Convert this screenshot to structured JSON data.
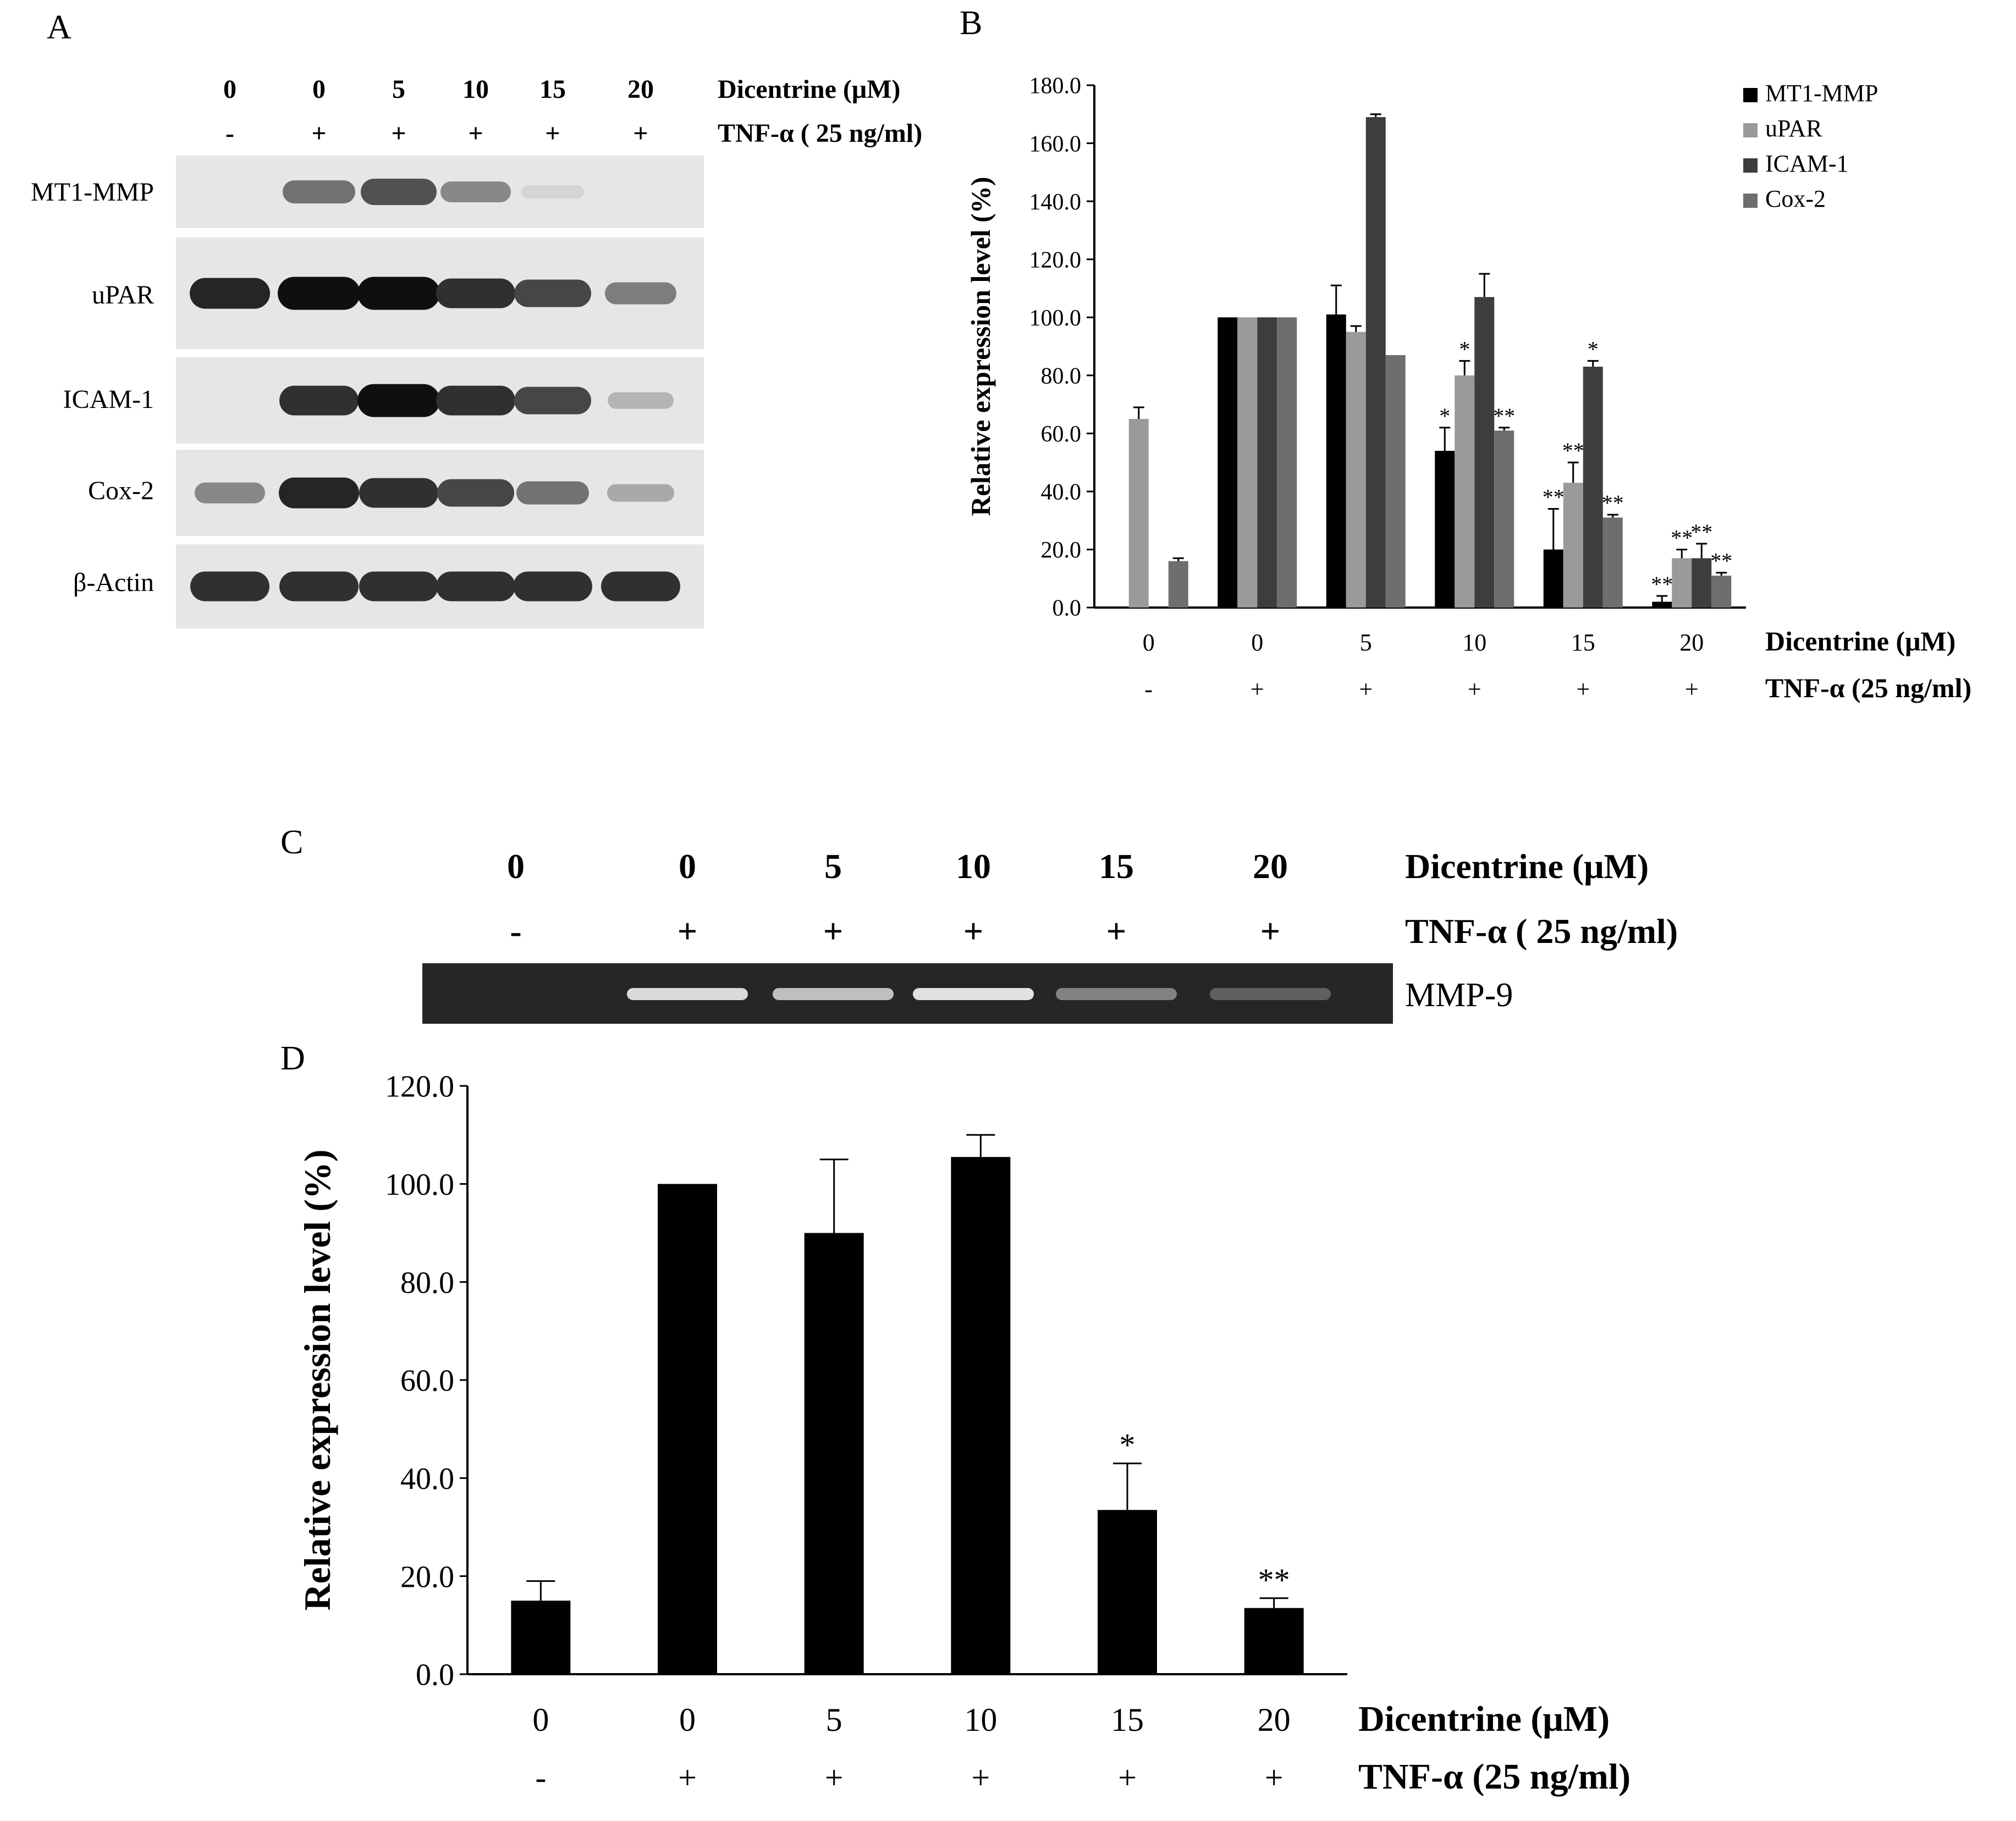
{
  "figure": {
    "panels": [
      "A",
      "B",
      "C",
      "D"
    ]
  },
  "blot_a": {
    "dicentrine_label": "Dicentrine (μM)",
    "tnf_label": "TNF-α ( 25 ng/ml)",
    "doses": [
      "0",
      "0",
      "5",
      "10",
      "15",
      "20"
    ],
    "tnf": [
      "-",
      "+",
      "+",
      "+",
      "+",
      "+"
    ],
    "rows": [
      {
        "label": "MT1-MMP",
        "intensity": [
          0.0,
          0.55,
          0.7,
          0.45,
          0.1,
          0.0
        ]
      },
      {
        "label": "uPAR",
        "intensity": [
          0.9,
          1.0,
          1.0,
          0.85,
          0.75,
          0.5
        ]
      },
      {
        "label": "ICAM-1",
        "intensity": [
          0.0,
          0.85,
          1.0,
          0.85,
          0.75,
          0.25
        ]
      },
      {
        "label": "Cox-2",
        "intensity": [
          0.45,
          0.9,
          0.85,
          0.75,
          0.55,
          0.3
        ]
      },
      {
        "label": "β-Actin",
        "intensity": [
          0.85,
          0.85,
          0.85,
          0.85,
          0.85,
          0.85
        ]
      }
    ]
  },
  "gel_c": {
    "dicentrine_label": "Dicentrine (μM)",
    "tnf_label": "TNF-α ( 25 ng/ml)",
    "doses": [
      "0",
      "0",
      "5",
      "10",
      "15",
      "20"
    ],
    "tnf": [
      "-",
      "+",
      "+",
      "+",
      "+",
      "+"
    ],
    "band_label": "MMP-9",
    "intensity": [
      0.05,
      0.9,
      0.75,
      0.95,
      0.4,
      0.2
    ]
  },
  "chart_data": [
    {
      "panel": "B",
      "type": "bar",
      "ylabel": "Relative expression level (%)",
      "ylim": [
        0,
        180
      ],
      "yticks": [
        "0.0",
        "20.0",
        "40.0",
        "60.0",
        "80.0",
        "100.0",
        "120.0",
        "140.0",
        "160.0",
        "180.0"
      ],
      "categories": [
        "0",
        "0",
        "5",
        "10",
        "15",
        "20"
      ],
      "tnf": [
        "-",
        "+",
        "+",
        "+",
        "+",
        "+"
      ],
      "xlabel": "Dicentrine (μM)",
      "x2label": "TNF-α (25 ng/ml)",
      "legend_position": "top-right",
      "series": [
        {
          "name": "MT1-MMP",
          "color": "#000000",
          "values": [
            0,
            100,
            101,
            54,
            20,
            2
          ],
          "errors": [
            0,
            0,
            10,
            8,
            14,
            2
          ],
          "sig": [
            "",
            "",
            "",
            "*",
            "**",
            "**"
          ]
        },
        {
          "name": "uPAR",
          "color": "#9a9a9a",
          "values": [
            65,
            100,
            95,
            80,
            43,
            17
          ],
          "errors": [
            4,
            0,
            2,
            5,
            7,
            3
          ],
          "sig": [
            "",
            "",
            "",
            "*",
            "**",
            "**"
          ]
        },
        {
          "name": "ICAM-1",
          "color": "#3d3d3d",
          "values": [
            0,
            100,
            169,
            107,
            83,
            17
          ],
          "errors": [
            0,
            0,
            1,
            8,
            2,
            5
          ],
          "sig": [
            "",
            "",
            "",
            "",
            "*",
            "**"
          ]
        },
        {
          "name": "Cox-2",
          "color": "#6e6e6e",
          "values": [
            16,
            100,
            87,
            61,
            31,
            11
          ],
          "errors": [
            1,
            0,
            0,
            1,
            1,
            1
          ],
          "sig": [
            "",
            "",
            "",
            "**",
            "**",
            "**"
          ]
        }
      ]
    },
    {
      "panel": "D",
      "type": "bar",
      "ylabel": "Relative expression level (%)",
      "ylim": [
        0,
        120
      ],
      "yticks": [
        "0.0",
        "20.0",
        "40.0",
        "60.0",
        "80.0",
        "100.0",
        "120.0"
      ],
      "categories": [
        "0",
        "0",
        "5",
        "10",
        "15",
        "20"
      ],
      "tnf": [
        "-",
        "+",
        "+",
        "+",
        "+",
        "+"
      ],
      "xlabel": "Dicentrine (μM)",
      "x2label": "TNF-α (25 ng/ml)",
      "series": [
        {
          "color": "#000000",
          "values": [
            15,
            100,
            90,
            105.5,
            33.5,
            13.5
          ],
          "errors": [
            4,
            0,
            15,
            4.5,
            9.5,
            2
          ],
          "sig": [
            "",
            "",
            "",
            "",
            "*",
            "**"
          ]
        }
      ]
    }
  ]
}
